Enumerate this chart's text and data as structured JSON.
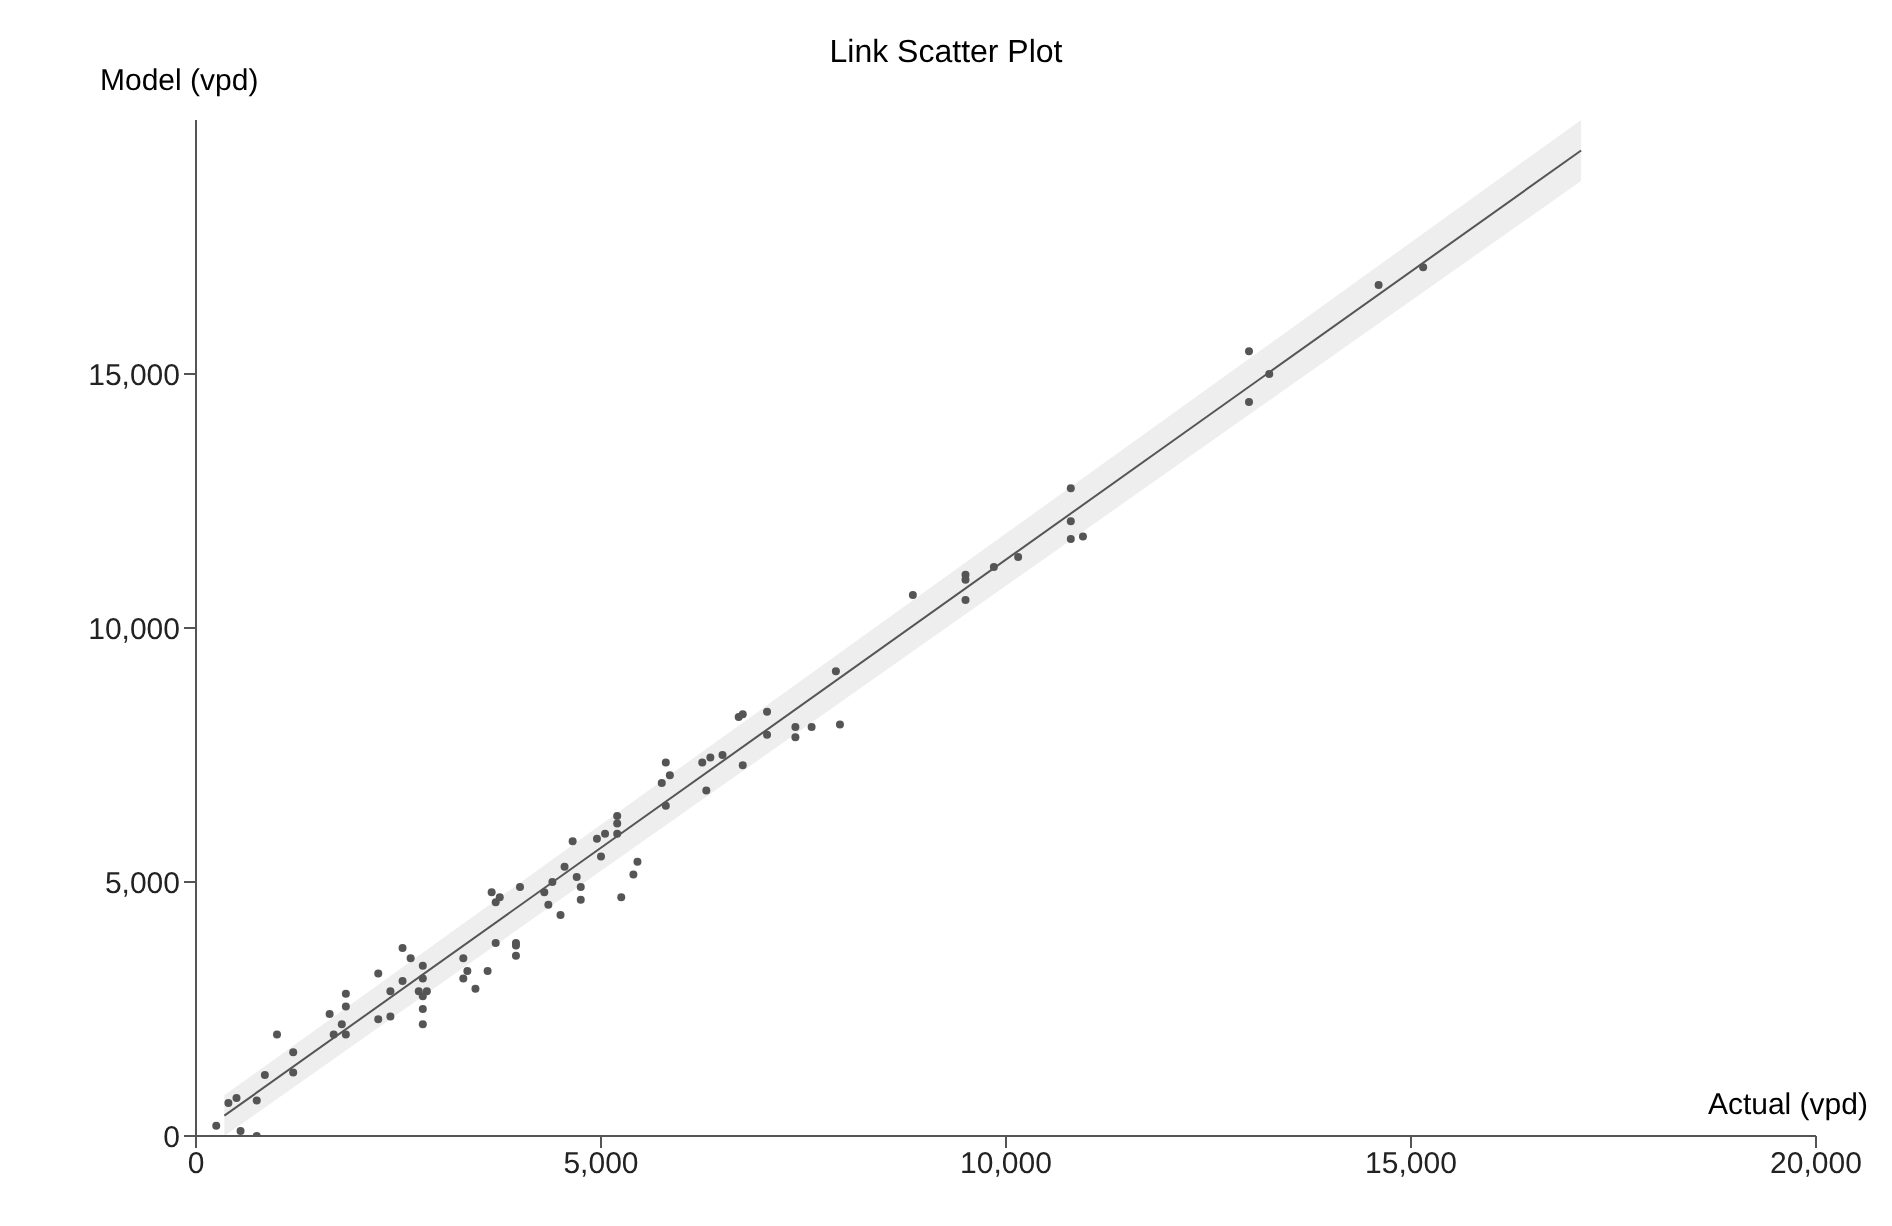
{
  "chart_data": {
    "type": "scatter",
    "title": "Link Scatter Plot",
    "xlabel": "Actual (vpd)",
    "ylabel": "Model (vpd)",
    "xlim": [
      0,
      20000
    ],
    "ylim": [
      0,
      20000
    ],
    "xticks": [
      0,
      {
        "value": 5000,
        "label": "5,000"
      },
      {
        "value": 10000,
        "label": "10,000"
      },
      {
        "value": 15000,
        "label": "15,000"
      },
      {
        "value": 20000,
        "label": "20,000"
      }
    ],
    "yticks": [
      0,
      {
        "value": 5000,
        "label": "5,000"
      },
      {
        "value": 10000,
        "label": "10,000"
      },
      {
        "value": 15000,
        "label": "15,000"
      }
    ],
    "grid": false,
    "legend": false,
    "series": [
      {
        "type": "line",
        "color": "#555555",
        "marker": "none",
        "line_style": "solid",
        "x": [
          350,
          17100
        ],
        "values": [
          400,
          19400
        ],
        "lower": [
          0,
          18800
        ],
        "upper": [
          800,
          20000
        ]
      },
      {
        "type": "scatter",
        "color": "#555555",
        "marker": "circle",
        "x": [
          250,
          400,
          500,
          550,
          750,
          750,
          850,
          1000,
          1200,
          1200,
          1650,
          1700,
          1800,
          1850,
          1850,
          1850,
          2250,
          2250,
          2400,
          2400,
          2550,
          2550,
          2650,
          2750,
          2800,
          2800,
          2800,
          2800,
          2800,
          2850,
          3300,
          3300,
          3350,
          3450,
          3600,
          3650,
          3700,
          3750,
          3700,
          3950,
          3950,
          3950,
          4000,
          4300,
          4350,
          4400,
          4500,
          4550,
          4650,
          4700,
          4750,
          4750,
          4950,
          5000,
          5050,
          5200,
          5200,
          5200,
          5250,
          5400,
          5450,
          5800,
          5750,
          5800,
          5850,
          6250,
          6300,
          6350,
          6500,
          6750,
          6700,
          6750,
          7050,
          7050,
          7400,
          7400,
          7600,
          7950,
          7900,
          8850,
          9500,
          9500,
          9500,
          9850,
          10150,
          10800,
          10800,
          10800,
          10950,
          13000,
          13000,
          13250,
          14600,
          15150
        ],
        "values": [
          200,
          650,
          750,
          100,
          0,
          700,
          1200,
          2000,
          1250,
          1650,
          2400,
          2000,
          2200,
          2000,
          2800,
          2550,
          3200,
          2300,
          2850,
          2350,
          3050,
          3700,
          3500,
          2850,
          3350,
          3100,
          2750,
          2500,
          2200,
          2850,
          3500,
          3100,
          3250,
          2900,
          3250,
          4800,
          4600,
          4700,
          3800,
          3800,
          3750,
          3550,
          4900,
          4800,
          4550,
          5000,
          4350,
          5300,
          5800,
          5100,
          4900,
          4650,
          5850,
          5500,
          5950,
          6300,
          6150,
          5950,
          4700,
          5150,
          5400,
          6500,
          6950,
          7350,
          7100,
          7350,
          6800,
          7450,
          7500,
          7300,
          8250,
          8300,
          8350,
          7900,
          8050,
          7850,
          8050,
          8100,
          9150,
          10650,
          11050,
          10950,
          10550,
          11200,
          11400,
          12750,
          12100,
          11750,
          11800,
          15450,
          14450,
          15000,
          16750,
          17100
        ]
      }
    ]
  }
}
